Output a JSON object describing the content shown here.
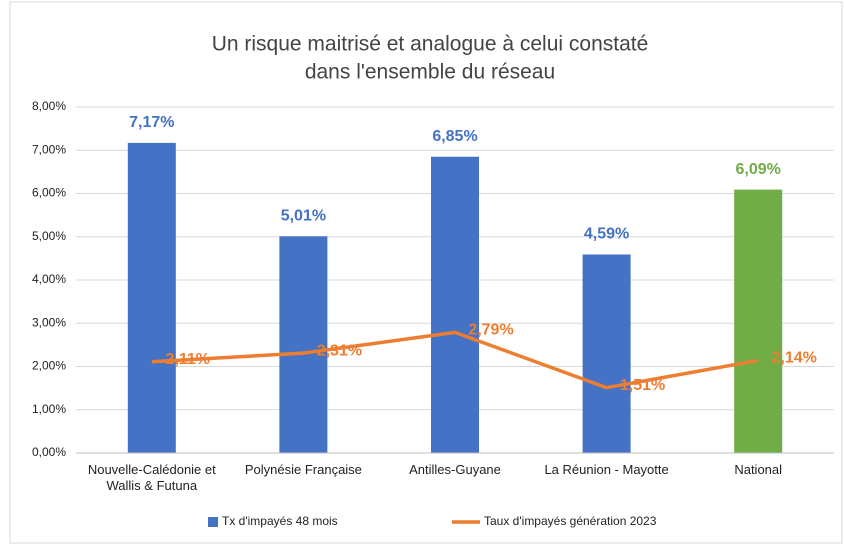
{
  "chart_data": {
    "type": "bar_line",
    "title": [
      "Un risque maitrisé et analogue à celui constaté",
      "dans l'ensemble du réseau"
    ],
    "categories": [
      "Nouvelle-Calédonie et Wallis & Futuna",
      "Polynésie Française",
      "Antilles-Guyane",
      "La Réunion - Mayotte",
      "National"
    ],
    "series": [
      {
        "name": "Tx d'impayés 48 mois",
        "type": "bar",
        "color": "#4472c4",
        "colors": [
          "#4472c4",
          "#4472c4",
          "#4472c4",
          "#4472c4",
          "#70ad47"
        ],
        "values": [
          7.17,
          5.01,
          6.85,
          4.59,
          6.09
        ],
        "value_labels": [
          "7,17%",
          "5,01%",
          "6,85%",
          "4,59%",
          "6,09%"
        ]
      },
      {
        "name": "Taux d'impayés génération 2023",
        "type": "line",
        "color": "#ed7d31",
        "values": [
          2.11,
          2.31,
          2.79,
          1.51,
          2.14
        ],
        "value_labels": [
          "2,11%",
          "2,31%",
          "2,79%",
          "1,51%",
          "2,14%"
        ]
      }
    ],
    "ylim": [
      0,
      8
    ],
    "yticks": [
      {
        "value": 0,
        "label": "0,00%"
      },
      {
        "value": 1,
        "label": "1,00%"
      },
      {
        "value": 2,
        "label": "2,00%"
      },
      {
        "value": 3,
        "label": "3,00%"
      },
      {
        "value": 4,
        "label": "4,00%"
      },
      {
        "value": 5,
        "label": "5,00%"
      },
      {
        "value": 6,
        "label": "6,00%"
      },
      {
        "value": 7,
        "label": "7,00%"
      },
      {
        "value": 8,
        "label": "8,00%"
      }
    ],
    "grid": true,
    "legend": "bottom"
  }
}
